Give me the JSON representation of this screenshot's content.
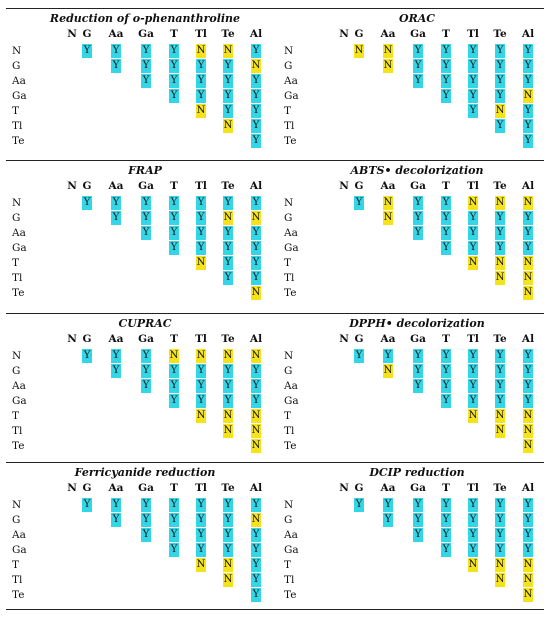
{
  "colors": {
    "Y": "#33d6e6",
    "N": "#f4e31a"
  },
  "columns": [
    "N",
    "G",
    "Aa",
    "Ga",
    "T",
    "Tl",
    "Te",
    "Al"
  ],
  "rows": [
    "N",
    "G",
    "Aa",
    "Ga",
    "T",
    "Tl",
    "Te"
  ],
  "panels": [
    {
      "title": "Reduction of o-phenanthroline",
      "cells": [
        [
          "Y",
          "Y",
          "Y",
          "Y",
          "N",
          "N",
          "Y"
        ],
        [
          "Y",
          "Y",
          "Y",
          "Y",
          "Y",
          "N"
        ],
        [
          "Y",
          "Y",
          "Y",
          "Y",
          "Y"
        ],
        [
          "Y",
          "Y",
          "Y",
          "Y"
        ],
        [
          "N",
          "Y",
          "Y"
        ],
        [
          "N",
          "Y"
        ],
        [
          "Y"
        ]
      ]
    },
    {
      "title": "ORAC",
      "cells": [
        [
          "N",
          "N",
          "Y",
          "Y",
          "Y",
          "Y",
          "Y"
        ],
        [
          "N",
          "Y",
          "Y",
          "Y",
          "Y",
          "Y"
        ],
        [
          "Y",
          "Y",
          "Y",
          "Y",
          "Y"
        ],
        [
          "Y",
          "Y",
          "Y",
          "N"
        ],
        [
          "Y",
          "N",
          "Y"
        ],
        [
          "Y",
          "Y"
        ],
        [
          "Y"
        ]
      ]
    },
    {
      "title": "FRAP",
      "cells": [
        [
          "Y",
          "Y",
          "Y",
          "Y",
          "Y",
          "Y",
          "Y"
        ],
        [
          "Y",
          "Y",
          "Y",
          "Y",
          "N",
          "N"
        ],
        [
          "Y",
          "Y",
          "Y",
          "Y",
          "Y"
        ],
        [
          "Y",
          "Y",
          "Y",
          "Y"
        ],
        [
          "N",
          "Y",
          "Y"
        ],
        [
          "Y",
          "Y"
        ],
        [
          "N"
        ]
      ]
    },
    {
      "title": "ABTS• decolorization",
      "cells": [
        [
          "Y",
          "N",
          "Y",
          "Y",
          "N",
          "N",
          "N"
        ],
        [
          "N",
          "Y",
          "Y",
          "Y",
          "Y",
          "Y"
        ],
        [
          "Y",
          "Y",
          "Y",
          "Y",
          "Y"
        ],
        [
          "Y",
          "Y",
          "Y",
          "Y"
        ],
        [
          "N",
          "N",
          "N"
        ],
        [
          "N",
          "N"
        ],
        [
          "N"
        ]
      ]
    },
    {
      "title": "CUPRAC",
      "cells": [
        [
          "Y",
          "Y",
          "Y",
          "N",
          "N",
          "N",
          "N"
        ],
        [
          "Y",
          "Y",
          "Y",
          "Y",
          "Y",
          "Y"
        ],
        [
          "Y",
          "Y",
          "Y",
          "Y",
          "Y"
        ],
        [
          "Y",
          "Y",
          "Y",
          "Y"
        ],
        [
          "N",
          "N",
          "N"
        ],
        [
          "N",
          "N"
        ],
        [
          "N"
        ]
      ]
    },
    {
      "title": "DPPH• decolorization",
      "cells": [
        [
          "Y",
          "Y",
          "Y",
          "Y",
          "Y",
          "Y",
          "Y"
        ],
        [
          "N",
          "Y",
          "Y",
          "Y",
          "Y",
          "Y"
        ],
        [
          "Y",
          "Y",
          "Y",
          "Y",
          "Y"
        ],
        [
          "Y",
          "Y",
          "Y",
          "Y"
        ],
        [
          "N",
          "N",
          "N"
        ],
        [
          "N",
          "N"
        ],
        [
          "N"
        ]
      ]
    },
    {
      "title": "Ferricyanide reduction",
      "cells": [
        [
          "Y",
          "Y",
          "Y",
          "Y",
          "Y",
          "Y",
          "Y"
        ],
        [
          "Y",
          "Y",
          "Y",
          "Y",
          "Y",
          "N"
        ],
        [
          "Y",
          "Y",
          "Y",
          "Y",
          "Y"
        ],
        [
          "Y",
          "Y",
          "Y",
          "Y"
        ],
        [
          "N",
          "N",
          "Y"
        ],
        [
          "N",
          "Y"
        ],
        [
          "Y"
        ]
      ]
    },
    {
      "title": "DCIP reduction",
      "cells": [
        [
          "Y",
          "Y",
          "Y",
          "Y",
          "Y",
          "Y",
          "Y"
        ],
        [
          "Y",
          "Y",
          "Y",
          "Y",
          "Y",
          "Y"
        ],
        [
          "Y",
          "Y",
          "Y",
          "Y",
          "Y"
        ],
        [
          "Y",
          "Y",
          "Y",
          "Y"
        ],
        [
          "N",
          "N",
          "N"
        ],
        [
          "N",
          "N"
        ],
        [
          "N"
        ]
      ]
    }
  ]
}
